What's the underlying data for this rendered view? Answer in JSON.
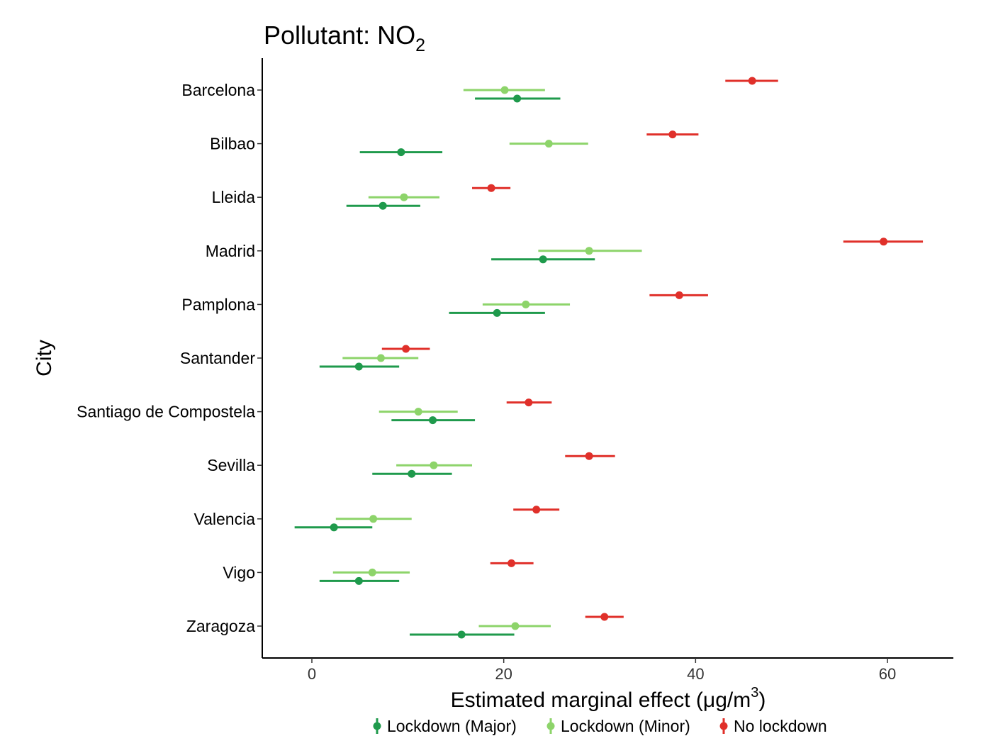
{
  "chart_data": {
    "type": "scatter",
    "subtype": "point-range / forest plot (horizontal error bars)",
    "title": "Pollutant: NO",
    "title_subscript": "2",
    "xlabel": "Estimated marginal effect (μg/m",
    "xlabel_superscript": "3",
    "xlabel_suffix": ")",
    "ylabel": "City",
    "xlim": [
      -5,
      67
    ],
    "xticks": [
      0,
      20,
      40,
      60
    ],
    "grid": false,
    "legend_position": "bottom",
    "categories": [
      "Barcelona",
      "Bilbao",
      "Lleida",
      "Madrid",
      "Pamplona",
      "Santander",
      "Santiago de Compostela",
      "Sevilla",
      "Valencia",
      "Vigo",
      "Zaragoza"
    ],
    "series": [
      {
        "name": "Lockdown (Major)",
        "color": "#1f9a4c",
        "points": [
          {
            "city": "Barcelona",
            "estimate": 21.4,
            "low": 17.0,
            "high": 25.9
          },
          {
            "city": "Bilbao",
            "estimate": 9.3,
            "low": 5.0,
            "high": 13.6
          },
          {
            "city": "Lleida",
            "estimate": 7.4,
            "low": 3.6,
            "high": 11.3
          },
          {
            "city": "Madrid",
            "estimate": 24.1,
            "low": 18.7,
            "high": 29.5
          },
          {
            "city": "Pamplona",
            "estimate": 19.3,
            "low": 14.3,
            "high": 24.3
          },
          {
            "city": "Santander",
            "estimate": 4.9,
            "low": 0.8,
            "high": 9.1
          },
          {
            "city": "Santiago de Compostela",
            "estimate": 12.6,
            "low": 8.3,
            "high": 17.0
          },
          {
            "city": "Sevilla",
            "estimate": 10.4,
            "low": 6.3,
            "high": 14.6
          },
          {
            "city": "Valencia",
            "estimate": 2.3,
            "low": -1.8,
            "high": 6.3
          },
          {
            "city": "Vigo",
            "estimate": 4.9,
            "low": 0.8,
            "high": 9.1
          },
          {
            "city": "Zaragoza",
            "estimate": 15.6,
            "low": 10.2,
            "high": 21.1
          }
        ]
      },
      {
        "name": "Lockdown (Minor)",
        "color": "#8dd46a",
        "points": [
          {
            "city": "Barcelona",
            "estimate": 20.1,
            "low": 15.8,
            "high": 24.3
          },
          {
            "city": "Bilbao",
            "estimate": 24.7,
            "low": 20.6,
            "high": 28.8
          },
          {
            "city": "Lleida",
            "estimate": 9.6,
            "low": 5.9,
            "high": 13.3
          },
          {
            "city": "Madrid",
            "estimate": 28.9,
            "low": 23.6,
            "high": 34.4
          },
          {
            "city": "Pamplona",
            "estimate": 22.3,
            "low": 17.8,
            "high": 26.9
          },
          {
            "city": "Santander",
            "estimate": 7.2,
            "low": 3.2,
            "high": 11.1
          },
          {
            "city": "Santiago de Compostela",
            "estimate": 11.1,
            "low": 7.0,
            "high": 15.2
          },
          {
            "city": "Sevilla",
            "estimate": 12.7,
            "low": 8.8,
            "high": 16.7
          },
          {
            "city": "Valencia",
            "estimate": 6.4,
            "low": 2.5,
            "high": 10.4
          },
          {
            "city": "Vigo",
            "estimate": 6.3,
            "low": 2.2,
            "high": 10.2
          },
          {
            "city": "Zaragoza",
            "estimate": 21.2,
            "low": 17.4,
            "high": 24.9
          }
        ]
      },
      {
        "name": "No lockdown",
        "color": "#e0302a",
        "points": [
          {
            "city": "Barcelona",
            "estimate": 45.9,
            "low": 43.1,
            "high": 48.6
          },
          {
            "city": "Bilbao",
            "estimate": 37.6,
            "low": 34.9,
            "high": 40.3
          },
          {
            "city": "Lleida",
            "estimate": 18.7,
            "low": 16.7,
            "high": 20.7
          },
          {
            "city": "Madrid",
            "estimate": 59.6,
            "low": 55.4,
            "high": 63.7
          },
          {
            "city": "Pamplona",
            "estimate": 38.3,
            "low": 35.2,
            "high": 41.3
          },
          {
            "city": "Santander",
            "estimate": 9.8,
            "low": 7.3,
            "high": 12.3
          },
          {
            "city": "Santiago de Compostela",
            "estimate": 22.6,
            "low": 20.3,
            "high": 25.0
          },
          {
            "city": "Sevilla",
            "estimate": 28.9,
            "low": 26.4,
            "high": 31.6
          },
          {
            "city": "Valencia",
            "estimate": 23.4,
            "low": 21.0,
            "high": 25.8
          },
          {
            "city": "Vigo",
            "estimate": 20.8,
            "low": 18.6,
            "high": 23.1
          },
          {
            "city": "Zaragoza",
            "estimate": 30.5,
            "low": 28.5,
            "high": 32.5
          }
        ]
      }
    ]
  }
}
